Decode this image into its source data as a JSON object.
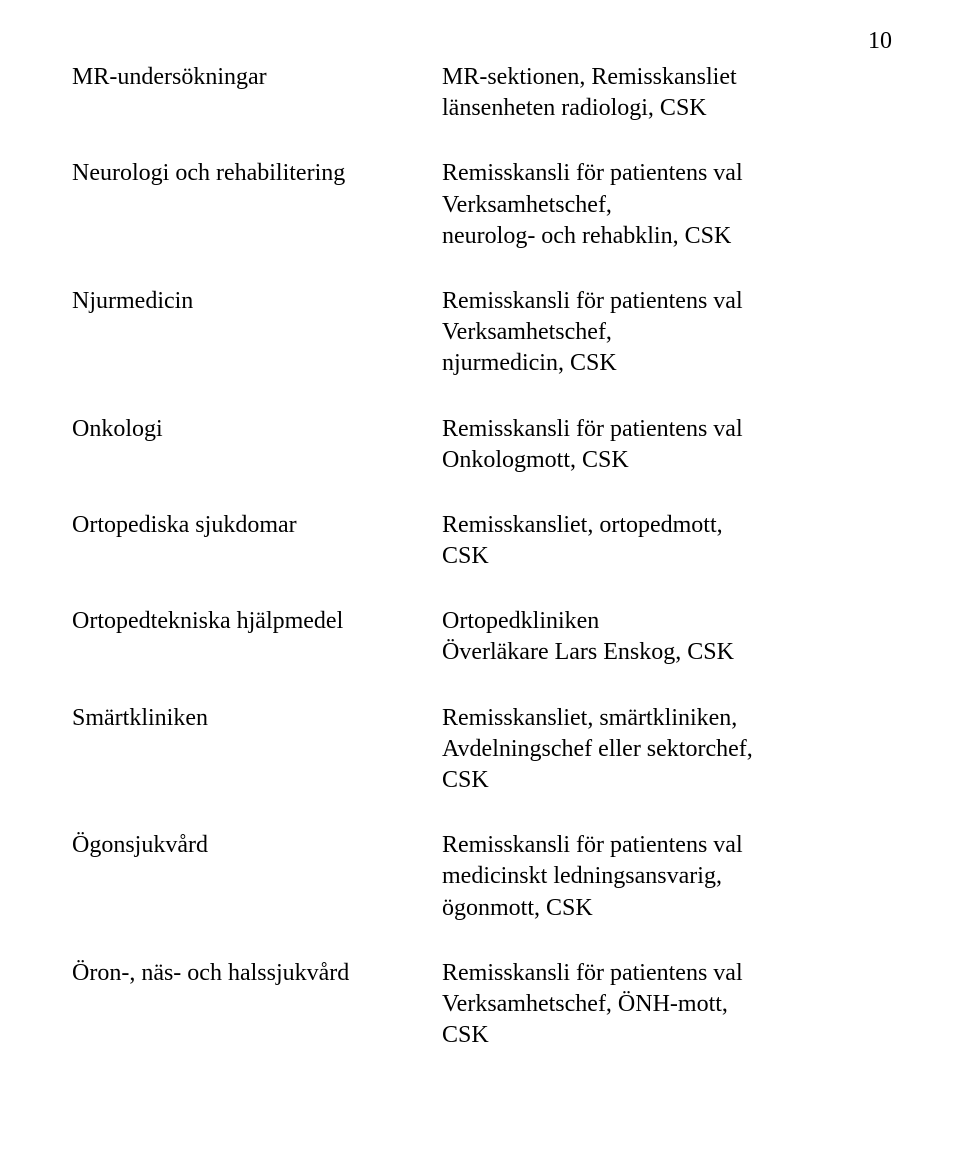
{
  "page_number": "10",
  "font_family": "Times New Roman",
  "font_size_pt": 18,
  "text_color": "#000000",
  "background_color": "#ffffff",
  "rows": [
    {
      "left": "MR-undersökningar",
      "right": [
        "MR-sektionen, Remisskansliet",
        "länsenheten radiologi, CSK"
      ]
    },
    {
      "left": "Neurologi och rehabilitering",
      "right": [
        "Remisskansli för patientens val",
        "Verksamhetschef,",
        "neurolog- och rehabklin, CSK"
      ]
    },
    {
      "left": "Njurmedicin",
      "right": [
        "Remisskansli för patientens val",
        "Verksamhetschef,",
        "njurmedicin, CSK"
      ]
    },
    {
      "left": "Onkologi",
      "right": [
        "Remisskansli för patientens val",
        "Onkologmott, CSK"
      ]
    },
    {
      "left": "Ortopediska sjukdomar",
      "right": [
        "Remisskansliet, ortopedmott,",
        "CSK"
      ]
    },
    {
      "left": "Ortopedtekniska hjälpmedel",
      "right": [
        "Ortopedkliniken",
        "Överläkare Lars Enskog, CSK"
      ]
    },
    {
      "left": "Smärtkliniken",
      "right": [
        "Remisskansliet, smärtkliniken,",
        "Avdelningschef eller sektorchef,",
        "CSK"
      ]
    },
    {
      "left": "Ögonsjukvård",
      "right": [
        "Remisskansli för patientens val",
        "medicinskt ledningsansvarig,",
        "ögonmott, CSK"
      ]
    },
    {
      "left": "Öron-, näs- och halssjukvård",
      "right": [
        "Remisskansli för patientens val",
        "Verksamhetschef, ÖNH-mott,",
        "CSK"
      ]
    }
  ]
}
